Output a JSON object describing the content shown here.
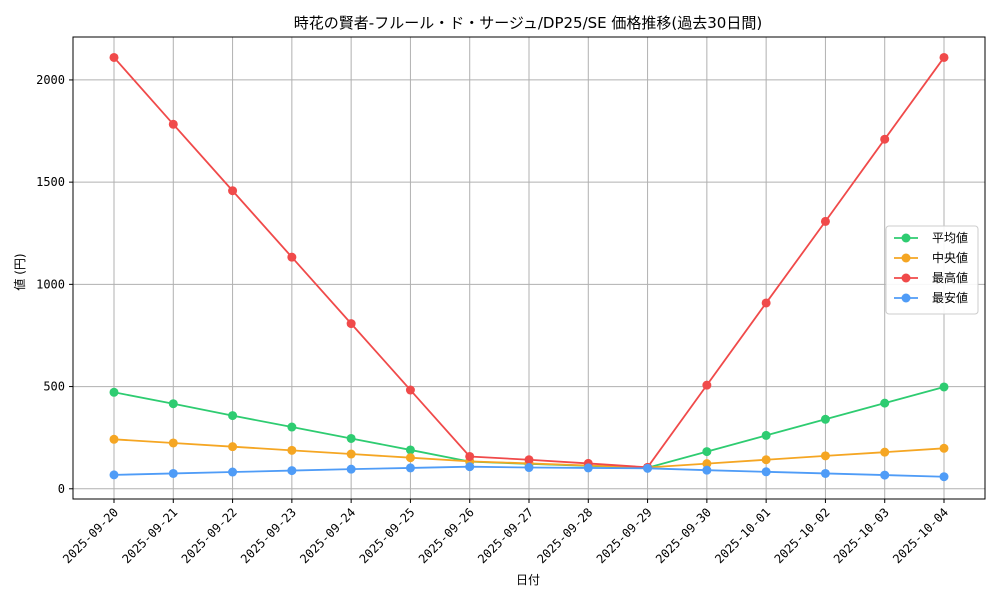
{
  "chart_data": {
    "type": "line",
    "title": "時花の賢者-フルール・ド・サージュ/DP25/SE 価格推移(過去30日間)",
    "xlabel": "日付",
    "ylabel": "値 (円)",
    "ylim": [
      -50,
      2210
    ],
    "yticks": [
      0,
      500,
      1000,
      1500,
      2000
    ],
    "grid": true,
    "legend_position": "center-right",
    "categories": [
      "2025-09-20",
      "2025-09-21",
      "2025-09-22",
      "2025-09-23",
      "2025-09-24",
      "2025-09-25",
      "2025-09-26",
      "2025-09-27",
      "2025-09-28",
      "2025-09-29",
      "2025-09-30",
      "2025-10-01",
      "2025-10-02",
      "2025-10-03",
      "2025-10-04"
    ],
    "series": [
      {
        "name": "平均値",
        "color": "#2ecc71",
        "values": [
          472,
          416,
          358,
          302,
          246,
          190,
          133,
          122,
          112,
          103,
          182,
          261,
          340,
          419,
          498
        ]
      },
      {
        "name": "中央値",
        "color": "#f5a623",
        "values": [
          242,
          224,
          206,
          188,
          170,
          152,
          134,
          124,
          114,
          104,
          123,
          142,
          161,
          179,
          198
        ]
      },
      {
        "name": "最高値",
        "color": "#f04a4a",
        "values": [
          2110,
          1783,
          1458,
          1133,
          808,
          483,
          158,
          142,
          124,
          105,
          507,
          909,
          1308,
          1710,
          2110
        ]
      },
      {
        "name": "最安値",
        "color": "#4f9cf7",
        "values": [
          68,
          75,
          82,
          89,
          96,
          102,
          108,
          104,
          102,
          100,
          91,
          83,
          75,
          67,
          59
        ]
      }
    ]
  }
}
